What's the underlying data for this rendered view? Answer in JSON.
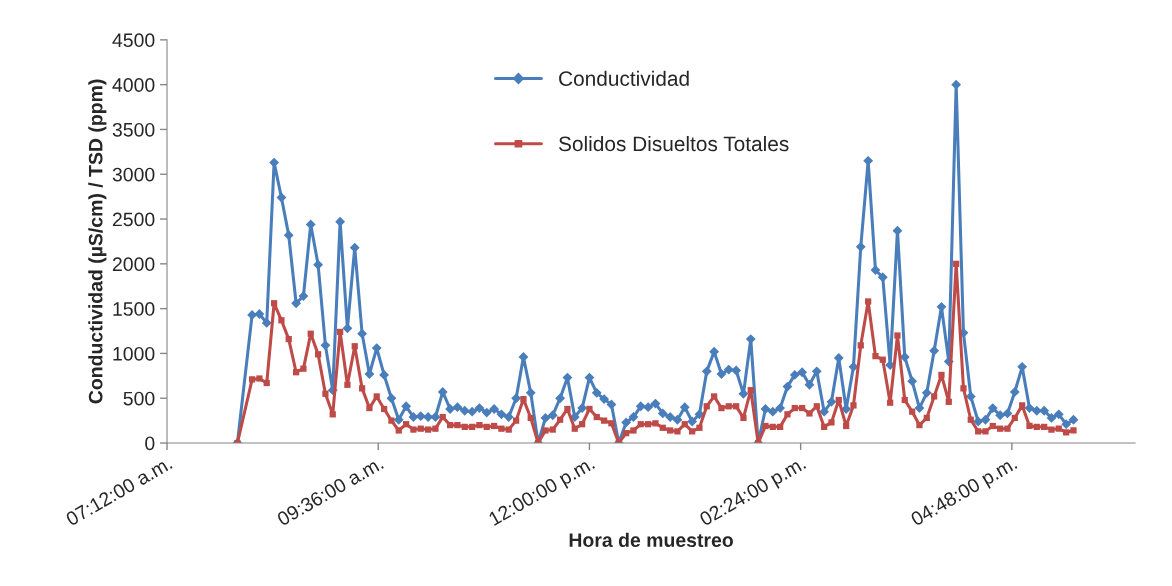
{
  "chart_data": {
    "type": "line",
    "xlabel": "Hora de muestreo",
    "ylabel": "Conductividad (µS/cm) / TSD (ppm)",
    "x": [
      8.0,
      8.167,
      8.25,
      8.333,
      8.417,
      8.5,
      8.583,
      8.667,
      8.75,
      8.833,
      8.917,
      9.0,
      9.083,
      9.167,
      9.25,
      9.333,
      9.417,
      9.5,
      9.583,
      9.667,
      9.75,
      9.833,
      9.917,
      10.0,
      10.083,
      10.167,
      10.25,
      10.333,
      10.417,
      10.5,
      10.583,
      10.667,
      10.75,
      10.833,
      10.917,
      11.0,
      11.083,
      11.167,
      11.25,
      11.333,
      11.417,
      11.5,
      11.583,
      11.667,
      11.75,
      11.833,
      11.917,
      12.0,
      12.083,
      12.167,
      12.25,
      12.333,
      12.417,
      12.5,
      12.583,
      12.667,
      12.75,
      12.833,
      12.917,
      13.0,
      13.083,
      13.167,
      13.25,
      13.333,
      13.417,
      13.5,
      13.583,
      13.667,
      13.75,
      13.833,
      13.917,
      14.0,
      14.083,
      14.167,
      14.25,
      14.333,
      14.417,
      14.5,
      14.583,
      14.667,
      14.75,
      14.833,
      14.917,
      15.0,
      15.083,
      15.167,
      15.25,
      15.333,
      15.417,
      15.5,
      15.583,
      15.667,
      15.75,
      15.833,
      15.917,
      16.0,
      16.083,
      16.167,
      16.25,
      16.333,
      16.417,
      16.5,
      16.583,
      16.667,
      16.75,
      16.833,
      16.917,
      17.0,
      17.083,
      17.167,
      17.25,
      17.333,
      17.417,
      17.5
    ],
    "series": [
      {
        "name": "Conductividad",
        "color": "#4a7ebb",
        "marker": "diamond",
        "values": [
          0,
          1430,
          1440,
          1340,
          3130,
          2740,
          2320,
          1560,
          1640,
          2440,
          1990,
          1090,
          590,
          2470,
          1280,
          2180,
          1220,
          770,
          1060,
          760,
          500,
          260,
          410,
          290,
          300,
          290,
          290,
          570,
          380,
          400,
          360,
          350,
          390,
          340,
          380,
          320,
          290,
          500,
          960,
          560,
          0,
          280,
          310,
          500,
          730,
          290,
          390,
          730,
          560,
          490,
          430,
          0,
          230,
          290,
          410,
          400,
          440,
          330,
          290,
          260,
          400,
          240,
          320,
          800,
          1020,
          770,
          820,
          810,
          550,
          1160,
          0,
          380,
          350,
          390,
          630,
          760,
          790,
          650,
          800,
          350,
          460,
          950,
          380,
          850,
          2190,
          3150,
          1930,
          1850,
          870,
          2370,
          960,
          690,
          390,
          560,
          1030,
          1520,
          910,
          4000,
          1230,
          520,
          240,
          260,
          390,
          310,
          330,
          570,
          850,
          390,
          360,
          360,
          280,
          320,
          210,
          260
        ]
      },
      {
        "name": "Solidos Disueltos Totales",
        "color": "#be4b48",
        "marker": "square",
        "values": [
          0,
          710,
          720,
          670,
          1560,
          1370,
          1160,
          790,
          830,
          1220,
          990,
          550,
          320,
          1240,
          650,
          1080,
          610,
          390,
          520,
          380,
          250,
          140,
          210,
          150,
          160,
          150,
          160,
          290,
          200,
          200,
          180,
          180,
          200,
          180,
          190,
          160,
          150,
          250,
          490,
          280,
          0,
          140,
          150,
          260,
          380,
          160,
          210,
          380,
          290,
          250,
          220,
          0,
          110,
          140,
          210,
          210,
          220,
          170,
          140,
          130,
          210,
          130,
          170,
          410,
          520,
          390,
          410,
          410,
          280,
          590,
          0,
          190,
          180,
          180,
          320,
          390,
          390,
          330,
          410,
          180,
          230,
          480,
          190,
          420,
          1090,
          1580,
          970,
          930,
          450,
          1200,
          480,
          350,
          200,
          280,
          520,
          760,
          460,
          2000,
          610,
          260,
          130,
          130,
          190,
          160,
          160,
          280,
          420,
          190,
          180,
          180,
          150,
          160,
          120,
          140
        ]
      }
    ],
    "xlim": [
      7.2,
      18.2
    ],
    "xticks": [
      {
        "value": 7.2,
        "label": "07:12:00 a.m."
      },
      {
        "value": 9.6,
        "label": "09:36:00 a.m."
      },
      {
        "value": 12,
        "label": "12:00:00 p.m."
      },
      {
        "value": 14.4,
        "label": "02:24:00 p.m."
      },
      {
        "value": 16.8,
        "label": "04:48:00 p.m."
      }
    ],
    "ylim": [
      0,
      4500
    ],
    "yticks": [
      0,
      500,
      1000,
      1500,
      2000,
      2500,
      3000,
      3500,
      4000,
      4500
    ],
    "grid": false,
    "legend": "top"
  }
}
